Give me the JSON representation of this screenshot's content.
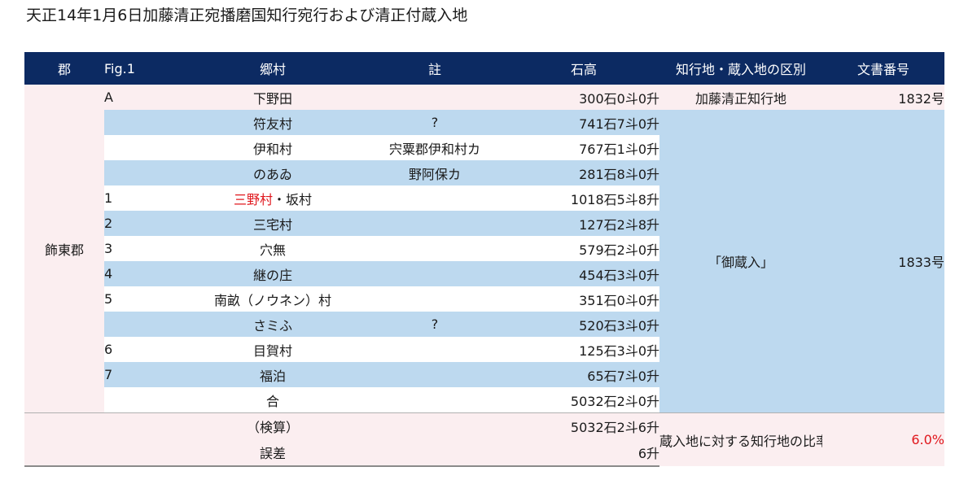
{
  "title": "天正14年1月6日加藤清正宛播磨国知行宛行および清正付蔵入地",
  "headers": {
    "gun": "郡",
    "fig": "Fig.1",
    "go": "郷村",
    "chu": "註",
    "koku": "石高",
    "kubetsu": "知行地・蔵入地の区別",
    "bunsho": "文書番号"
  },
  "gun_name": "飾東郡",
  "first_row": {
    "fig": "A",
    "village": "下野田",
    "note": "",
    "koku": "300石0斗0升",
    "kubetsu": "加藤清正知行地",
    "bunsho": "1832号"
  },
  "kurairi": {
    "kubetsu": "「御蔵入」",
    "bunsho": "1833号"
  },
  "rows": [
    {
      "fig": "",
      "village": "符友村",
      "note": "?",
      "koku": "741石7斗0升"
    },
    {
      "fig": "",
      "village": "伊和村",
      "note": "宍粟郡伊和村カ",
      "koku": "767石1斗0升"
    },
    {
      "fig": "",
      "village": "のあゐ",
      "note": "野阿保カ",
      "koku": "281石8斗0升"
    },
    {
      "fig": "1",
      "village_red": "三野村",
      "village_rest": "・坂村",
      "note": "",
      "koku": "1018石5斗8升"
    },
    {
      "fig": "2",
      "village": "三宅村",
      "note": "",
      "koku": "127石2斗8升"
    },
    {
      "fig": "3",
      "village": "穴無",
      "note": "",
      "koku": "579石2斗0升"
    },
    {
      "fig": "4",
      "village": "継の庄",
      "note": "",
      "koku": "454石3斗0升"
    },
    {
      "fig": "5",
      "village": "南畝（ノウネン）村",
      "note": "",
      "koku": "351石0斗0升"
    },
    {
      "fig": "",
      "village": "さミふ",
      "note": "?",
      "koku": "520石3斗0升"
    },
    {
      "fig": "6",
      "village": "目賀村",
      "note": "",
      "koku": "125石3斗0升"
    },
    {
      "fig": "7",
      "village": "福泊",
      "note": "",
      "koku": "65石7斗0升"
    },
    {
      "fig": "",
      "village": "合",
      "note": "",
      "koku": "5032石2斗0升"
    }
  ],
  "summary": {
    "kenzan_label": "（検算）",
    "kenzan_value": "5032石2斗6升",
    "gosa_label": "誤差",
    "gosa_value": "6升",
    "ratio_label": "蔵入地に対する知行地の比率",
    "ratio_value": "6.0%"
  }
}
